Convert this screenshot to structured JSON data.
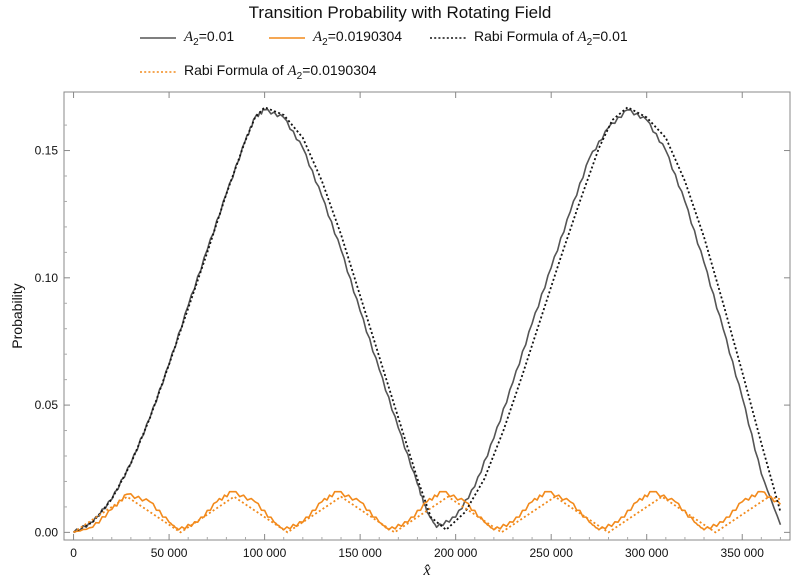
{
  "chart_data": {
    "type": "line",
    "title": "Transition Probability with Rotating Field",
    "xlabel": "x̂",
    "ylabel": "Probability",
    "xlim": [
      -5000,
      375000
    ],
    "ylim": [
      -0.003,
      0.173
    ],
    "xticks": [
      0,
      50000,
      100000,
      150000,
      200000,
      250000,
      300000,
      350000
    ],
    "xtick_labels": [
      "0",
      "50 000",
      "100 000",
      "150 000",
      "200 000",
      "250 000",
      "300 000",
      "350 000"
    ],
    "yticks": [
      0.0,
      0.05,
      0.1,
      0.15
    ],
    "ytick_labels": [
      "0.00",
      "0.05",
      "0.10",
      "0.15"
    ],
    "grid": false,
    "legend_position": "top",
    "series": [
      {
        "name": "A2=0.01",
        "legend_symbol": "A",
        "legend_sub": "2",
        "legend_rest": "=0.01",
        "style": "solid",
        "color": "#555555",
        "x": [
          0,
          10000,
          20000,
          30000,
          40000,
          50000,
          60000,
          70000,
          80000,
          90000,
          95000,
          100000,
          110000,
          120000,
          130000,
          140000,
          150000,
          160000,
          170000,
          180000,
          185000,
          190000,
          200000,
          210000,
          220000,
          230000,
          240000,
          250000,
          260000,
          270000,
          280000,
          290000,
          300000,
          310000,
          320000,
          330000,
          340000,
          350000,
          360000,
          370000
        ],
        "y": [
          0.0,
          0.004,
          0.013,
          0.027,
          0.045,
          0.066,
          0.089,
          0.111,
          0.133,
          0.154,
          0.163,
          0.166,
          0.163,
          0.151,
          0.132,
          0.111,
          0.087,
          0.064,
          0.041,
          0.019,
          0.008,
          0.002,
          0.006,
          0.018,
          0.037,
          0.059,
          0.082,
          0.104,
          0.126,
          0.147,
          0.159,
          0.166,
          0.162,
          0.15,
          0.13,
          0.106,
          0.08,
          0.053,
          0.023,
          0.003
        ]
      },
      {
        "name": "A2=0.0190304",
        "legend_symbol": "A",
        "legend_sub": "2",
        "legend_rest": "=0.0190304",
        "style": "solid",
        "color": "#f28a1c",
        "x": [
          0,
          10000,
          20000,
          28000,
          40000,
          50000,
          55000,
          65000,
          75000,
          83000,
          95000,
          105000,
          110000,
          120000,
          130000,
          138000,
          150000,
          160000,
          165000,
          175000,
          185000,
          193000,
          205000,
          215000,
          220000,
          230000,
          240000,
          248000,
          260000,
          270000,
          275000,
          285000,
          295000,
          303000,
          315000,
          325000,
          330000,
          340000,
          350000,
          360000,
          370000
        ],
        "y": [
          0.0,
          0.002,
          0.009,
          0.015,
          0.012,
          0.004,
          0.001,
          0.004,
          0.012,
          0.016,
          0.012,
          0.004,
          0.001,
          0.004,
          0.012,
          0.016,
          0.012,
          0.004,
          0.001,
          0.004,
          0.012,
          0.016,
          0.012,
          0.004,
          0.001,
          0.004,
          0.012,
          0.016,
          0.012,
          0.004,
          0.001,
          0.004,
          0.012,
          0.016,
          0.012,
          0.004,
          0.001,
          0.004,
          0.012,
          0.016,
          0.011
        ]
      },
      {
        "name": "Rabi Formula of A2=0.01",
        "legend_prefix": "Rabi Formula of ",
        "legend_symbol": "A",
        "legend_sub": "2",
        "legend_rest": "=0.01",
        "style": "dotted",
        "color": "#111111",
        "x": [
          0,
          10000,
          20000,
          30000,
          40000,
          50000,
          60000,
          70000,
          80000,
          90000,
          95000,
          100000,
          110000,
          120000,
          130000,
          140000,
          150000,
          160000,
          170000,
          180000,
          187000,
          195000,
          205000,
          215000,
          225000,
          235000,
          245000,
          255000,
          265000,
          275000,
          282000,
          290000,
          300000,
          310000,
          320000,
          330000,
          340000,
          350000,
          360000,
          370000
        ],
        "y": [
          0.0,
          0.004,
          0.013,
          0.027,
          0.045,
          0.066,
          0.088,
          0.11,
          0.133,
          0.154,
          0.163,
          0.167,
          0.164,
          0.155,
          0.138,
          0.117,
          0.093,
          0.069,
          0.045,
          0.021,
          0.006,
          0.001,
          0.008,
          0.021,
          0.04,
          0.062,
          0.085,
          0.108,
          0.13,
          0.151,
          0.162,
          0.167,
          0.163,
          0.155,
          0.138,
          0.116,
          0.09,
          0.063,
          0.035,
          0.008
        ]
      },
      {
        "name": "Rabi Formula of A2=0.0190304",
        "legend_prefix": "Rabi Formula of ",
        "legend_symbol": "A",
        "legend_sub": "2",
        "legend_rest": "=0.0190304",
        "style": "dotted",
        "color": "#f28a1c",
        "x": [
          0,
          28000,
          56000,
          84000,
          112000,
          140000,
          168000,
          196000,
          224000,
          252000,
          280000,
          308000,
          336000,
          364000,
          370000
        ],
        "y": [
          0.0,
          0.014,
          0.0,
          0.014,
          0.0,
          0.014,
          0.0,
          0.014,
          0.0,
          0.014,
          0.0,
          0.014,
          0.0,
          0.014,
          0.013
        ]
      }
    ]
  }
}
